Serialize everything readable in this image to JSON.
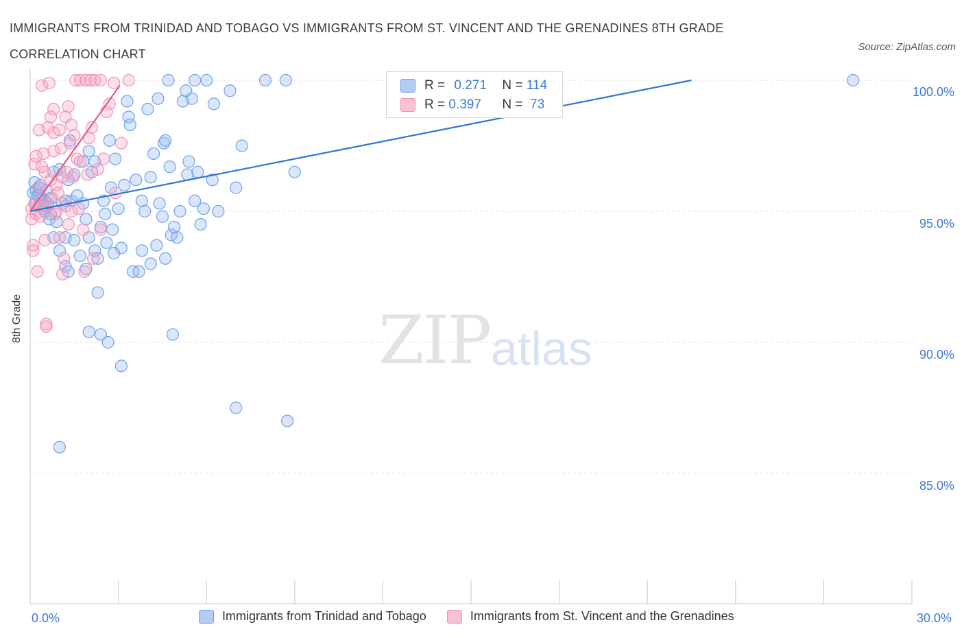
{
  "title": "IMMIGRANTS FROM TRINIDAD AND TOBAGO VS IMMIGRANTS FROM ST. VINCENT AND THE GRENADINES 8TH GRADE CORRELATION CHART",
  "source": "Source: ZipAtlas.com",
  "watermark": {
    "zip": "ZIP",
    "atlas": "atlas"
  },
  "legend": {
    "r_label": "R = ",
    "n_label": "N = ",
    "series": [
      {
        "r": "0.271",
        "n": "114"
      },
      {
        "r": "0.397",
        "n": " 73"
      }
    ]
  },
  "chart_data": {
    "type": "scatter",
    "title": "IMMIGRANTS FROM TRINIDAD AND TOBAGO VS IMMIGRANTS FROM ST. VINCENT AND THE GRENADINES 8TH GRADE CORRELATION CHART",
    "xlabel": "",
    "ylabel": "8th Grade",
    "xlim": [
      0,
      30
    ],
    "ylim": [
      80,
      100.4
    ],
    "x_tick_labels": [
      "0.0%",
      "30.0%"
    ],
    "y_ticks": [
      85,
      90,
      95,
      100
    ],
    "y_tick_labels": [
      "85.0%",
      "90.0%",
      "95.0%",
      "100.0%"
    ],
    "series": [
      {
        "name": "Immigrants from Trinidad and Tobago",
        "color": "#6fa0ea",
        "line_color": "#2f73d4",
        "trend": {
          "x": [
            0.0,
            22.5
          ],
          "y": [
            95.0,
            100.0
          ]
        },
        "points": [
          [
            0.1,
            95.7
          ],
          [
            0.15,
            96.1
          ],
          [
            0.2,
            95.8
          ],
          [
            0.2,
            95.3
          ],
          [
            0.25,
            95.6
          ],
          [
            0.3,
            95.2
          ],
          [
            0.3,
            95.9
          ],
          [
            0.35,
            96.0
          ],
          [
            0.4,
            95.5
          ],
          [
            0.45,
            95.1
          ],
          [
            0.5,
            95.4
          ],
          [
            0.55,
            95.8
          ],
          [
            0.6,
            95.2
          ],
          [
            0.65,
            94.7
          ],
          [
            0.7,
            95.5
          ],
          [
            0.8,
            96.5
          ],
          [
            0.8,
            94.0
          ],
          [
            0.9,
            94.6
          ],
          [
            1.0,
            96.6
          ],
          [
            1.0,
            93.5
          ],
          [
            1.1,
            95.3
          ],
          [
            1.2,
            94.0
          ],
          [
            1.2,
            92.9
          ],
          [
            1.3,
            96.2
          ],
          [
            1.3,
            92.7
          ],
          [
            1.35,
            97.7
          ],
          [
            1.4,
            95.4
          ],
          [
            1.5,
            96.4
          ],
          [
            1.5,
            93.9
          ],
          [
            1.6,
            95.6
          ],
          [
            1.7,
            93.3
          ],
          [
            1.8,
            96.9
          ],
          [
            1.9,
            94.7
          ],
          [
            1.9,
            92.8
          ],
          [
            2.0,
            97.3
          ],
          [
            2.0,
            94.0
          ],
          [
            2.1,
            96.5
          ],
          [
            2.2,
            96.9
          ],
          [
            2.2,
            93.5
          ],
          [
            2.3,
            91.9
          ],
          [
            2.4,
            94.4
          ],
          [
            2.4,
            90.3
          ],
          [
            2.5,
            95.4
          ],
          [
            2.55,
            94.9
          ],
          [
            2.6,
            93.8
          ],
          [
            2.65,
            90.0
          ],
          [
            2.7,
            97.7
          ],
          [
            2.75,
            95.9
          ],
          [
            2.8,
            94.3
          ],
          [
            2.85,
            93.4
          ],
          [
            2.9,
            97.0
          ],
          [
            3.0,
            95.1
          ],
          [
            3.1,
            93.6
          ],
          [
            3.1,
            89.1
          ],
          [
            3.2,
            96.0
          ],
          [
            3.3,
            99.2
          ],
          [
            3.35,
            98.6
          ],
          [
            3.4,
            98.3
          ],
          [
            3.5,
            92.7
          ],
          [
            3.6,
            96.2
          ],
          [
            3.7,
            92.7
          ],
          [
            3.8,
            95.4
          ],
          [
            3.8,
            93.5
          ],
          [
            3.9,
            95.0
          ],
          [
            4.0,
            98.9
          ],
          [
            4.1,
            96.3
          ],
          [
            4.1,
            93.0
          ],
          [
            4.2,
            97.2
          ],
          [
            4.3,
            93.7
          ],
          [
            4.35,
            99.3
          ],
          [
            4.4,
            95.3
          ],
          [
            4.5,
            94.8
          ],
          [
            4.55,
            97.6
          ],
          [
            4.6,
            97.7
          ],
          [
            4.6,
            93.2
          ],
          [
            4.7,
            100.0
          ],
          [
            4.75,
            96.7
          ],
          [
            4.8,
            94.1
          ],
          [
            4.85,
            90.3
          ],
          [
            4.9,
            94.4
          ],
          [
            5.0,
            94.0
          ],
          [
            5.1,
            95.0
          ],
          [
            5.2,
            99.2
          ],
          [
            5.3,
            99.6
          ],
          [
            5.35,
            96.4
          ],
          [
            5.4,
            96.9
          ],
          [
            5.5,
            99.3
          ],
          [
            5.6,
            100.0
          ],
          [
            5.6,
            95.4
          ],
          [
            5.7,
            96.5
          ],
          [
            5.8,
            94.5
          ],
          [
            5.9,
            95.1
          ],
          [
            6.0,
            100.0
          ],
          [
            6.2,
            96.2
          ],
          [
            6.25,
            99.1
          ],
          [
            6.4,
            95.0
          ],
          [
            6.8,
            99.6
          ],
          [
            7.0,
            95.9
          ],
          [
            7.0,
            87.5
          ],
          [
            7.2,
            97.5
          ],
          [
            8.0,
            100.0
          ],
          [
            8.7,
            100.0
          ],
          [
            8.75,
            87.0
          ],
          [
            9.0,
            96.5
          ],
          [
            1.0,
            86.0
          ],
          [
            2.0,
            90.4
          ],
          [
            28.0,
            100.0
          ],
          [
            0.5,
            95.0
          ],
          [
            0.7,
            94.9
          ],
          [
            0.3,
            95.6
          ],
          [
            1.8,
            95.3
          ],
          [
            0.6,
            95.3
          ],
          [
            1.2,
            95.4
          ],
          [
            2.3,
            93.2
          ]
        ]
      },
      {
        "name": "Immigrants from St. Vincent and the Grenadines",
        "color": "#f092b2",
        "line_color": "#e5578a",
        "trend": {
          "x": [
            0.0,
            3.05
          ],
          "y": [
            95.0,
            99.8
          ]
        },
        "points": [
          [
            0.05,
            95.1
          ],
          [
            0.05,
            94.7
          ],
          [
            0.1,
            93.7
          ],
          [
            0.1,
            93.5
          ],
          [
            0.15,
            95.3
          ],
          [
            0.15,
            96.8
          ],
          [
            0.2,
            97.1
          ],
          [
            0.2,
            94.9
          ],
          [
            0.25,
            92.7
          ],
          [
            0.3,
            95.2
          ],
          [
            0.3,
            98.1
          ],
          [
            0.35,
            95.9
          ],
          [
            0.35,
            94.8
          ],
          [
            0.4,
            99.8
          ],
          [
            0.4,
            96.7
          ],
          [
            0.45,
            97.2
          ],
          [
            0.5,
            96.5
          ],
          [
            0.5,
            95.2
          ],
          [
            0.5,
            93.9
          ],
          [
            0.55,
            90.7
          ],
          [
            0.55,
            90.6
          ],
          [
            0.6,
            98.2
          ],
          [
            0.65,
            99.9
          ],
          [
            0.7,
            98.6
          ],
          [
            0.7,
            96.2
          ],
          [
            0.75,
            95.5
          ],
          [
            0.8,
            98.9
          ],
          [
            0.8,
            98.0
          ],
          [
            0.8,
            97.3
          ],
          [
            0.85,
            94.9
          ],
          [
            0.9,
            96.0
          ],
          [
            0.9,
            95.0
          ],
          [
            0.95,
            95.7
          ],
          [
            1.0,
            98.1
          ],
          [
            1.0,
            94.0
          ],
          [
            1.05,
            97.4
          ],
          [
            1.1,
            96.3
          ],
          [
            1.1,
            92.6
          ],
          [
            1.15,
            93.2
          ],
          [
            1.2,
            98.6
          ],
          [
            1.2,
            95.2
          ],
          [
            1.25,
            96.5
          ],
          [
            1.3,
            99.0
          ],
          [
            1.3,
            94.5
          ],
          [
            1.35,
            97.6
          ],
          [
            1.4,
            98.3
          ],
          [
            1.4,
            95.0
          ],
          [
            1.45,
            96.3
          ],
          [
            1.5,
            97.9
          ],
          [
            1.55,
            100.0
          ],
          [
            1.6,
            97.0
          ],
          [
            1.65,
            95.1
          ],
          [
            1.7,
            100.0
          ],
          [
            1.7,
            96.9
          ],
          [
            1.8,
            94.3
          ],
          [
            1.85,
            92.7
          ],
          [
            1.9,
            100.0
          ],
          [
            1.95,
            96.4
          ],
          [
            2.0,
            97.8
          ],
          [
            2.05,
            100.0
          ],
          [
            2.1,
            98.2
          ],
          [
            2.15,
            93.2
          ],
          [
            2.2,
            100.0
          ],
          [
            2.3,
            96.6
          ],
          [
            2.4,
            100.0
          ],
          [
            2.4,
            94.3
          ],
          [
            2.5,
            97.0
          ],
          [
            2.6,
            98.8
          ],
          [
            2.7,
            99.1
          ],
          [
            2.85,
            99.9
          ],
          [
            2.9,
            95.7
          ],
          [
            3.1,
            97.6
          ],
          [
            3.35,
            100.0
          ]
        ]
      }
    ]
  }
}
